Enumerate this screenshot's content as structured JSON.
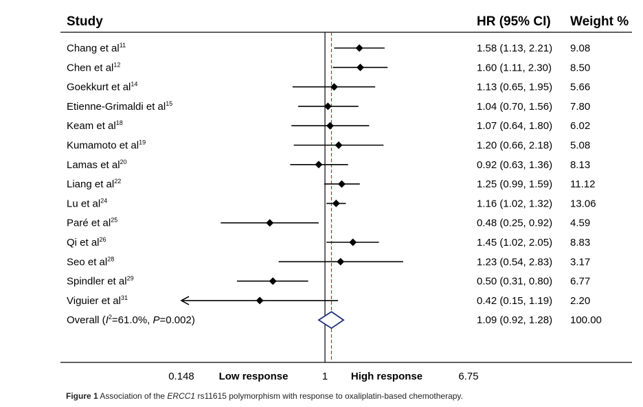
{
  "headers": {
    "study": "Study",
    "hr": "HR (95% CI)",
    "weight": "Weight %"
  },
  "chart_data": {
    "type": "forest",
    "x_scale": "log",
    "reference_value": 1,
    "pooled_estimate": 1.09,
    "xlim": [
      0.148,
      6.75
    ],
    "ticks": [
      {
        "value": 0.148,
        "label": "0.148"
      },
      {
        "value": 1,
        "label": "1"
      },
      {
        "value": 6.75,
        "label": "6.75"
      }
    ],
    "axis_labels": {
      "left": "Low response",
      "right": "High response"
    },
    "studies": [
      {
        "name": "Chang et al",
        "ref": "11",
        "hr": 1.58,
        "lo": 1.13,
        "hi": 2.21,
        "ci_text": "1.58 (1.13, 2.21)",
        "weight": "9.08"
      },
      {
        "name": "Chen et al",
        "ref": "12",
        "hr": 1.6,
        "lo": 1.11,
        "hi": 2.3,
        "ci_text": "1.60 (1.11, 2.30)",
        "weight": "8.50"
      },
      {
        "name": "Goekkurt et al",
        "ref": "14",
        "hr": 1.13,
        "lo": 0.65,
        "hi": 1.95,
        "ci_text": "1.13 (0.65, 1.95)",
        "weight": "5.66"
      },
      {
        "name": "Etienne-Grimaldi et al",
        "ref": "15",
        "hr": 1.04,
        "lo": 0.7,
        "hi": 1.56,
        "ci_text": "1.04 (0.70, 1.56)",
        "weight": "7.80"
      },
      {
        "name": "Keam et al",
        "ref": "18",
        "hr": 1.07,
        "lo": 0.64,
        "hi": 1.8,
        "ci_text": "1.07 (0.64, 1.80)",
        "weight": "6.02"
      },
      {
        "name": "Kumamoto et al",
        "ref": "19",
        "hr": 1.2,
        "lo": 0.66,
        "hi": 2.18,
        "ci_text": "1.20 (0.66, 2.18)",
        "weight": "5.08"
      },
      {
        "name": "Lamas et al",
        "ref": "20",
        "hr": 0.92,
        "lo": 0.63,
        "hi": 1.36,
        "ci_text": "0.92 (0.63, 1.36)",
        "weight": "8.13"
      },
      {
        "name": "Liang et al",
        "ref": "22",
        "hr": 1.25,
        "lo": 0.99,
        "hi": 1.59,
        "ci_text": "1.25 (0.99, 1.59)",
        "weight": "11.12"
      },
      {
        "name": "Lu et al",
        "ref": "24",
        "hr": 1.16,
        "lo": 1.02,
        "hi": 1.32,
        "ci_text": "1.16 (1.02, 1.32)",
        "weight": "13.06"
      },
      {
        "name": "Paré et al",
        "ref": "25",
        "hr": 0.48,
        "lo": 0.25,
        "hi": 0.92,
        "ci_text": "0.48 (0.25, 0.92)",
        "weight": "4.59"
      },
      {
        "name": "Qi et al",
        "ref": "26",
        "hr": 1.45,
        "lo": 1.02,
        "hi": 2.05,
        "ci_text": "1.45 (1.02, 2.05)",
        "weight": "8.83"
      },
      {
        "name": "Seo et al",
        "ref": "28",
        "hr": 1.23,
        "lo": 0.54,
        "hi": 2.83,
        "ci_text": "1.23 (0.54, 2.83)",
        "weight": "3.17"
      },
      {
        "name": "Spindler et al",
        "ref": "29",
        "hr": 0.5,
        "lo": 0.31,
        "hi": 0.8,
        "ci_text": "0.50 (0.31, 0.80)",
        "weight": "6.77"
      },
      {
        "name": "Viguier et al",
        "ref": "31",
        "hr": 0.42,
        "lo": 0.15,
        "hi": 1.19,
        "ci_text": "0.42 (0.15, 1.19)",
        "weight": "2.20",
        "left_arrow": true
      }
    ],
    "overall": {
      "prefix": "Overall (",
      "i2_symbol": "I",
      "i2_sup": "2",
      "i2_value": "=61.0%, ",
      "p_symbol": "P",
      "p_value": "=0.002)",
      "hr": 1.09,
      "lo": 0.92,
      "hi": 1.28,
      "ci_text": "1.09 (0.92, 1.28)",
      "weight": "100.00"
    },
    "colors": {
      "marks": "#000000",
      "pooled_line": "#b03030",
      "overall_diamond": "#1f2f7a"
    }
  },
  "caption": {
    "figure": "Figure 1",
    "text_before": "Association of the ",
    "gene": "ERCC1",
    "text_after": " rs11615 polymorphism with response to oxaliplatin-based chemotherapy."
  }
}
